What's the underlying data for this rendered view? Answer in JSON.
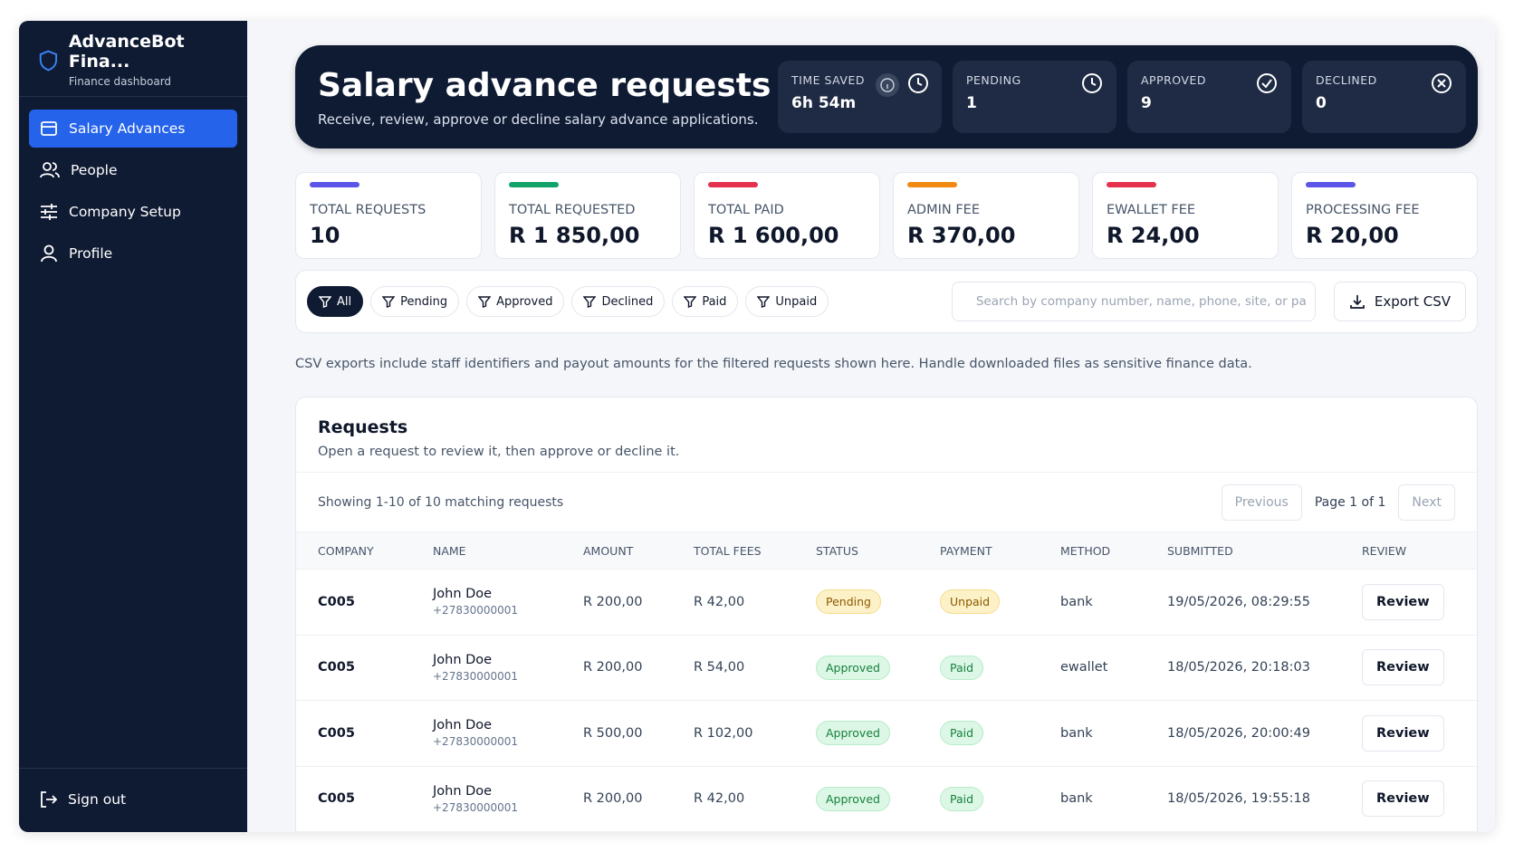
{
  "sidebar": {
    "brand": "AdvanceBot Fina...",
    "subtitle": "Finance dashboard",
    "nav": [
      "Salary Advances",
      "People",
      "Company Setup",
      "Profile"
    ],
    "sign_out": "Sign out"
  },
  "header": {
    "title": "Salary advance requests",
    "subtitle": "Receive, review, approve or decline salary advance applications.",
    "stats": [
      {
        "label": "TIME SAVED",
        "value": "6h 54m"
      },
      {
        "label": "PENDING",
        "value": "1"
      },
      {
        "label": "APPROVED",
        "value": "9"
      },
      {
        "label": "DECLINED",
        "value": "0"
      }
    ]
  },
  "summary": [
    {
      "label": "TOTAL REQUESTS",
      "value": "10",
      "color": "#5b55e8"
    },
    {
      "label": "TOTAL REQUESTED",
      "value": "R 1 850,00",
      "color": "#12a36b"
    },
    {
      "label": "TOTAL PAID",
      "value": "R 1 600,00",
      "color": "#e5304e"
    },
    {
      "label": "ADMIN FEE",
      "value": "R 370,00",
      "color": "#f08a12"
    },
    {
      "label": "EWALLET FEE",
      "value": "R 24,00",
      "color": "#e5304e"
    },
    {
      "label": "PROCESSING FEE",
      "value": "R 20,00",
      "color": "#5b55e8"
    }
  ],
  "filters": [
    "All",
    "Pending",
    "Approved",
    "Declined",
    "Paid",
    "Unpaid"
  ],
  "search_placeholder": "Search by company number, name, phone, site, or pa",
  "export": "Export CSV",
  "note": "CSV exports include staff identifiers and payout amounts for the filtered requests shown here. Handle downloaded files as sensitive finance data.",
  "requests": {
    "title": "Requests",
    "subtitle": "Open a request to review it, then approve or decline it.",
    "showing": "Showing 1-10 of 10 matching requests",
    "pagination": {
      "previous": "Previous",
      "page": "Page 1 of 1",
      "next": "Next"
    },
    "columns": [
      "COMPANY",
      "NAME",
      "AMOUNT",
      "TOTAL FEES",
      "STATUS",
      "PAYMENT",
      "METHOD",
      "SUBMITTED",
      "REVIEW"
    ],
    "rows": [
      {
        "company": "C005",
        "name": "John Doe",
        "phone": "+27830000001",
        "amount": "R 200,00",
        "fees": "R 42,00",
        "status": "Pending",
        "status_tone": "amber",
        "payment": "Unpaid",
        "payment_tone": "amber",
        "method": "bank",
        "submitted": "19/05/2026, 08:29:55",
        "action": "Review"
      },
      {
        "company": "C005",
        "name": "John Doe",
        "phone": "+27830000001",
        "amount": "R 200,00",
        "fees": "R 54,00",
        "status": "Approved",
        "status_tone": "green",
        "payment": "Paid",
        "payment_tone": "green",
        "method": "ewallet",
        "submitted": "18/05/2026, 20:18:03",
        "action": "Review"
      },
      {
        "company": "C005",
        "name": "John Doe",
        "phone": "+27830000001",
        "amount": "R 500,00",
        "fees": "R 102,00",
        "status": "Approved",
        "status_tone": "green",
        "payment": "Paid",
        "payment_tone": "green",
        "method": "bank",
        "submitted": "18/05/2026, 20:00:49",
        "action": "Review"
      },
      {
        "company": "C005",
        "name": "John Doe",
        "phone": "+27830000001",
        "amount": "R 200,00",
        "fees": "R 42,00",
        "status": "Approved",
        "status_tone": "green",
        "payment": "Paid",
        "payment_tone": "green",
        "method": "bank",
        "submitted": "18/05/2026, 19:55:18",
        "action": "Review"
      }
    ]
  }
}
